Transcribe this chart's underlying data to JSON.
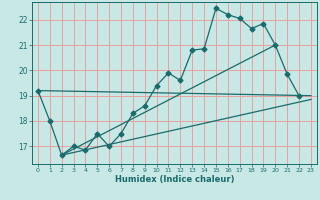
{
  "title": "",
  "xlabel": "Humidex (Indice chaleur)",
  "bg_color": "#c8e8e5",
  "plot_bg_color": "#c8e8e5",
  "line_color": "#1a6b6b",
  "grid_color": "#e8a0a0",
  "xlim": [
    -0.5,
    23.5
  ],
  "ylim": [
    16.3,
    22.7
  ],
  "yticks": [
    17,
    18,
    19,
    20,
    21,
    22
  ],
  "xticks": [
    0,
    1,
    2,
    3,
    4,
    5,
    6,
    7,
    8,
    9,
    10,
    11,
    12,
    13,
    14,
    15,
    16,
    17,
    18,
    19,
    20,
    21,
    22,
    23
  ],
  "line1_x": [
    0,
    1,
    2,
    3,
    4,
    5,
    6,
    7,
    8,
    9,
    10,
    11,
    12,
    13,
    14,
    15,
    16,
    17,
    18,
    19,
    20,
    21,
    22
  ],
  "line1_y": [
    19.2,
    18.0,
    16.65,
    17.0,
    16.85,
    17.5,
    17.0,
    17.5,
    18.3,
    18.6,
    19.4,
    19.9,
    19.6,
    20.8,
    20.85,
    22.45,
    22.2,
    22.05,
    21.65,
    21.85,
    21.0,
    19.85,
    19.0
  ],
  "line2_x": [
    0,
    23
  ],
  "line2_y": [
    19.2,
    19.0
  ],
  "line3_x": [
    2,
    23
  ],
  "line3_y": [
    16.65,
    18.85
  ],
  "line4_x": [
    2,
    20
  ],
  "line4_y": [
    16.65,
    21.0
  ]
}
